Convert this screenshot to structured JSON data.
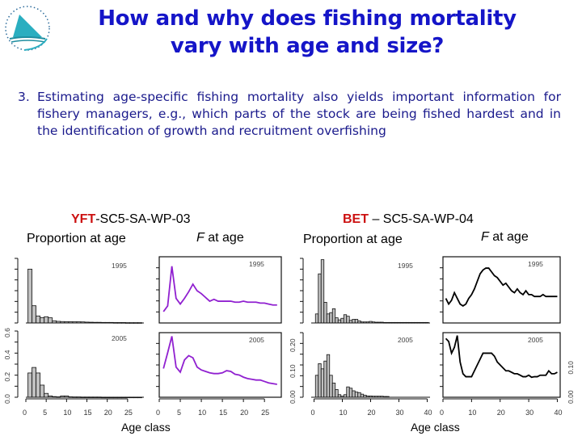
{
  "slide": {
    "title_line1": "How and why does fishing mortality",
    "title_line2": "vary with age and size?",
    "point_number": "3.",
    "point_text": "Estimating age-specific fishing mortality also yields important information for fishery managers, e.g., which parts of the stock are being fished hardest and in the identification of growth and recruitment overfishing",
    "logo_icon": "sailboat-logo-icon"
  },
  "panels": {
    "yft": {
      "species": "YFT",
      "paper": "-SC5-SA-WP-03",
      "left_label": "Proportion at age",
      "right_label_italic": "F",
      "right_label_rest": " at age",
      "xlabel": "Age class"
    },
    "bet": {
      "species": "BET",
      "paper": " – SC5-SA-WP-04",
      "left_label": "Proportion at age",
      "right_label_italic": "F",
      "right_label_rest": " at age",
      "xlabel": "Age class"
    }
  },
  "colors": {
    "title": "#1515c8",
    "body": "#1a1a8c",
    "species": "#cc1111",
    "bar_fill": "#c0c0c0",
    "yft_f_line": "#9020d0",
    "bet_f_line": "#000000",
    "logo": "#2aaec0"
  },
  "chart_data": [
    {
      "id": "yft-proportion-1995",
      "type": "bar",
      "title": "1995",
      "x": [
        1,
        2,
        3,
        4,
        5,
        6,
        7,
        8,
        9,
        10,
        11,
        12,
        13,
        14,
        15,
        16,
        17,
        18,
        19,
        20,
        21,
        22,
        23,
        24,
        25,
        26,
        27,
        28
      ],
      "values": [
        0.5,
        0.16,
        0.065,
        0.05,
        0.058,
        0.048,
        0.02,
        0.015,
        0.013,
        0.012,
        0.012,
        0.011,
        0.011,
        0.01,
        0.008,
        0.007,
        0.006,
        0.006,
        0.005,
        0.005,
        0.005,
        0.004,
        0.004,
        0.004,
        0.003,
        0.003,
        0.003,
        0.003
      ],
      "xlim": [
        0,
        29
      ],
      "ylim": [
        0,
        0.6
      ],
      "xlabel": "Age class",
      "ylabel": "Proportion at age"
    },
    {
      "id": "yft-proportion-2005",
      "type": "bar",
      "title": "2005",
      "x": [
        1,
        2,
        3,
        4,
        5,
        6,
        7,
        8,
        9,
        10,
        11,
        12,
        13,
        14,
        15,
        16,
        17,
        18,
        19,
        20,
        21,
        22,
        23,
        24,
        25,
        26,
        27,
        28
      ],
      "values": [
        0.22,
        0.27,
        0.22,
        0.11,
        0.035,
        0.012,
        0.006,
        0.004,
        0.012,
        0.012,
        0.004,
        0.003,
        0.003,
        0.002,
        0.002,
        0.002,
        0.002,
        0.002,
        0.001,
        0.001,
        0.001,
        0.001,
        0.001,
        0.001,
        0.001,
        0.001,
        0.001,
        0.001
      ],
      "xlim": [
        0,
        29
      ],
      "ylim": [
        0,
        0.6
      ],
      "yticks": [
        0.0,
        0.2,
        0.4,
        0.6
      ],
      "xticks": [
        0,
        5,
        10,
        15,
        20,
        25
      ],
      "xlabel": "Age class",
      "ylabel": "Proportion at age"
    },
    {
      "id": "yft-f-1995",
      "type": "line",
      "title": "1995",
      "x": [
        1,
        2,
        3,
        4,
        5,
        6,
        7,
        8,
        9,
        10,
        11,
        12,
        13,
        14,
        15,
        16,
        17,
        18,
        19,
        20,
        21,
        22,
        23,
        24,
        25,
        26,
        27,
        28
      ],
      "values": [
        0.12,
        0.18,
        0.6,
        0.26,
        0.2,
        0.26,
        0.33,
        0.41,
        0.34,
        0.31,
        0.27,
        0.23,
        0.25,
        0.23,
        0.23,
        0.23,
        0.23,
        0.22,
        0.22,
        0.23,
        0.22,
        0.22,
        0.22,
        0.21,
        0.21,
        0.2,
        0.19,
        0.19
      ],
      "xlim": [
        0,
        29
      ],
      "ylabel": "F at age"
    },
    {
      "id": "yft-f-2005",
      "type": "line",
      "title": "2005",
      "x": [
        1,
        2,
        3,
        4,
        5,
        6,
        7,
        8,
        9,
        10,
        11,
        12,
        13,
        14,
        15,
        16,
        17,
        18,
        19,
        20,
        21,
        22,
        23,
        24,
        25,
        26,
        27,
        28
      ],
      "values": [
        0.4,
        0.62,
        0.85,
        0.42,
        0.35,
        0.52,
        0.58,
        0.55,
        0.42,
        0.38,
        0.36,
        0.34,
        0.33,
        0.33,
        0.34,
        0.37,
        0.36,
        0.32,
        0.31,
        0.28,
        0.26,
        0.25,
        0.24,
        0.24,
        0.22,
        0.2,
        0.19,
        0.18
      ],
      "xlim": [
        0,
        29
      ],
      "xticks": [
        0,
        5,
        10,
        15,
        20,
        25
      ],
      "xlabel": "Age class",
      "ylabel": "F at age"
    },
    {
      "id": "bet-proportion-1995",
      "type": "bar",
      "title": "1995",
      "x": [
        1,
        2,
        3,
        4,
        5,
        6,
        7,
        8,
        9,
        10,
        11,
        12,
        13,
        14,
        15,
        16,
        17,
        18,
        19,
        20,
        21,
        22,
        23,
        24,
        25,
        26,
        27,
        28,
        29,
        30,
        31,
        32,
        33,
        34,
        35,
        36,
        37,
        38,
        39,
        40
      ],
      "values": [
        0.035,
        0.19,
        0.245,
        0.08,
        0.035,
        0.04,
        0.055,
        0.02,
        0.012,
        0.018,
        0.032,
        0.026,
        0.01,
        0.014,
        0.014,
        0.008,
        0.004,
        0.004,
        0.004,
        0.006,
        0.004,
        0.003,
        0.003,
        0.003,
        0.002,
        0.002,
        0.002,
        0.002,
        0.002,
        0.002,
        0.002,
        0.002,
        0.002,
        0.002,
        0.002,
        0.002,
        0.002,
        0.002,
        0.002,
        0.002
      ],
      "xlim": [
        -1,
        41
      ],
      "ylim": [
        0,
        0.25
      ],
      "xlabel": "Age class",
      "ylabel": "Proportion at age"
    },
    {
      "id": "bet-proportion-2005",
      "type": "bar",
      "title": "2005",
      "x": [
        1,
        2,
        3,
        4,
        5,
        6,
        7,
        8,
        9,
        10,
        11,
        12,
        13,
        14,
        15,
        16,
        17,
        18,
        19,
        20,
        21,
        22,
        23,
        24,
        25,
        26
      ],
      "values": [
        0.085,
        0.13,
        0.11,
        0.14,
        0.165,
        0.085,
        0.055,
        0.03,
        0.01,
        0.004,
        0.01,
        0.04,
        0.035,
        0.025,
        0.02,
        0.018,
        0.012,
        0.008,
        0.005,
        0.005,
        0.004,
        0.004,
        0.004,
        0.004,
        0.003,
        0.003
      ],
      "xlim": [
        -1,
        41
      ],
      "ylim": [
        0,
        0.25
      ],
      "yticks": [
        0.0,
        0.1,
        0.2
      ],
      "ytick_labels": [
        "0.00",
        "0.10",
        "0.20"
      ],
      "xticks": [
        0,
        10,
        20,
        30,
        40
      ],
      "xlabel": "Age class",
      "ylabel": "Proportion at age"
    },
    {
      "id": "bet-f-1995",
      "type": "line",
      "title": "1995",
      "x": [
        1,
        2,
        3,
        4,
        5,
        6,
        7,
        8,
        9,
        10,
        11,
        12,
        13,
        14,
        15,
        16,
        17,
        18,
        19,
        20,
        21,
        22,
        23,
        24,
        25,
        26,
        27,
        28,
        29,
        30,
        31,
        32,
        33,
        34,
        35,
        36,
        37,
        38,
        39,
        40
      ],
      "values": [
        0.13,
        0.1,
        0.12,
        0.16,
        0.13,
        0.1,
        0.09,
        0.1,
        0.13,
        0.15,
        0.18,
        0.22,
        0.26,
        0.28,
        0.29,
        0.29,
        0.27,
        0.25,
        0.24,
        0.22,
        0.2,
        0.21,
        0.19,
        0.17,
        0.16,
        0.18,
        0.16,
        0.15,
        0.17,
        0.15,
        0.15,
        0.14,
        0.14,
        0.14,
        0.15,
        0.14,
        0.14,
        0.14,
        0.14,
        0.14
      ],
      "xlim": [
        0,
        41
      ],
      "ylabel": "F at age"
    },
    {
      "id": "bet-f-2005",
      "type": "line",
      "title": "2005",
      "x": [
        1,
        2,
        3,
        4,
        5,
        6,
        7,
        8,
        9,
        10,
        11,
        12,
        13,
        14,
        15,
        16,
        17,
        18,
        19,
        20,
        21,
        22,
        23,
        24,
        25,
        26,
        27,
        28,
        29,
        30,
        31,
        32,
        33,
        34,
        35,
        36,
        37,
        38,
        39,
        40
      ],
      "values": [
        0.2,
        0.19,
        0.15,
        0.17,
        0.21,
        0.12,
        0.08,
        0.07,
        0.07,
        0.07,
        0.09,
        0.11,
        0.13,
        0.15,
        0.15,
        0.15,
        0.15,
        0.14,
        0.12,
        0.11,
        0.1,
        0.09,
        0.09,
        0.085,
        0.08,
        0.08,
        0.075,
        0.07,
        0.07,
        0.075,
        0.068,
        0.07,
        0.07,
        0.075,
        0.075,
        0.075,
        0.09,
        0.08,
        0.08,
        0.085
      ],
      "xlim": [
        0,
        41
      ],
      "yticks": [
        0.0,
        0.1
      ],
      "ytick_labels": [
        "0.00",
        "0.10"
      ],
      "xticks": [
        0,
        10,
        20,
        30,
        40
      ],
      "xlabel": "Age class",
      "ylabel": "F at age"
    }
  ]
}
